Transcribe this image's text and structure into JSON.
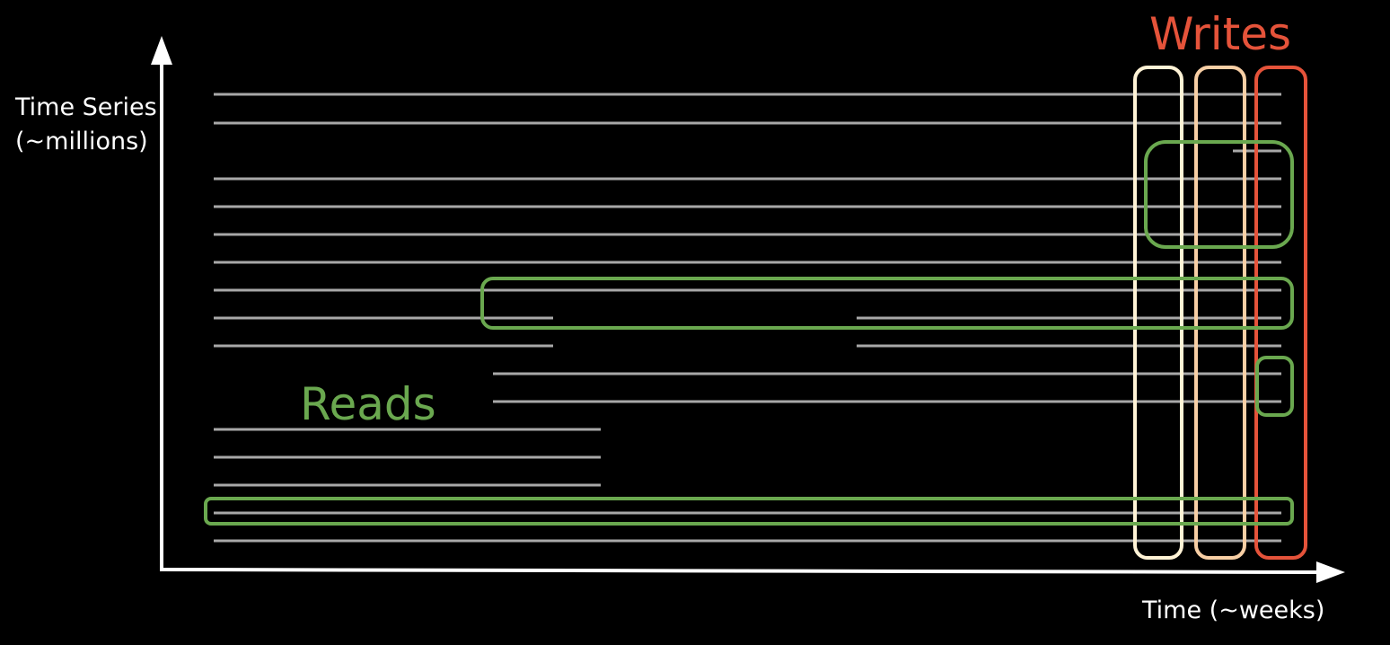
{
  "axes": {
    "y_label": "Time Series (~millions)",
    "x_label": "Time (~weeks)"
  },
  "annotations": {
    "reads_label": "Reads",
    "writes_label": "Writes"
  },
  "colors": {
    "series_line": "#a8a8a8",
    "reads": "#6aa84f",
    "writes": "#e5533a",
    "write_block_1": "#fff3d6",
    "write_block_2": "#f8cfa5"
  }
}
